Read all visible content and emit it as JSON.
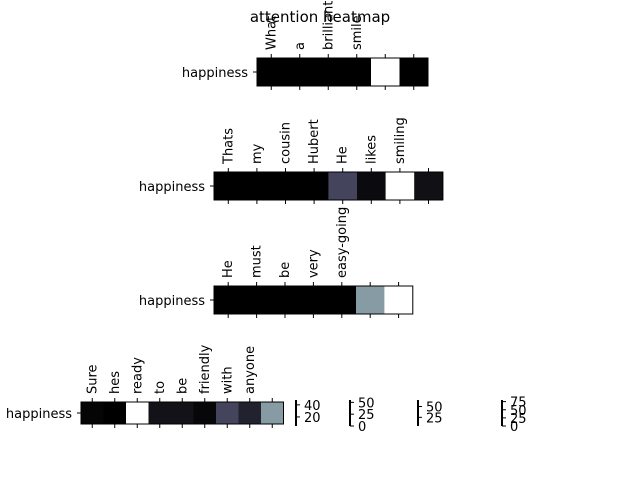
{
  "chart_data": {
    "type": "heatmap",
    "title": "attention heatmap",
    "colormap": "bone",
    "row_label": "happiness",
    "panels": [
      {
        "tokens": [
          "What",
          "a",
          "brilliant",
          "smile",
          "",
          ""
        ],
        "values": [
          0.0,
          0.0,
          0.0,
          0.0,
          1.0,
          0.0
        ]
      },
      {
        "tokens": [
          "Thats",
          "my",
          "cousin",
          "Hubert",
          "He",
          "likes",
          "smiling",
          ""
        ],
        "values": [
          0.0,
          0.0,
          0.0,
          0.0,
          0.3,
          0.05,
          1.0,
          0.07
        ]
      },
      {
        "tokens": [
          "He",
          "must",
          "be",
          "very",
          "easy-going",
          "",
          ""
        ],
        "values": [
          0.0,
          0.0,
          0.0,
          0.0,
          0.0,
          0.6,
          1.0
        ]
      },
      {
        "tokens": [
          "Sure",
          "hes",
          "ready",
          "to",
          "be",
          "friendly",
          "with",
          "anyone",
          ""
        ],
        "values": [
          0.02,
          0.0,
          1.0,
          0.08,
          0.08,
          0.03,
          0.3,
          0.15,
          0.6
        ]
      }
    ],
    "colorbars": [
      {
        "ticks": [
          "40",
          "20"
        ],
        "tick_values": [
          40,
          20
        ],
        "range": [
          5,
          48
        ]
      },
      {
        "ticks": [
          "50",
          "25",
          "0"
        ],
        "tick_values": [
          50,
          25,
          0
        ],
        "range": [
          0,
          55
        ]
      },
      {
        "ticks": [
          "50",
          "25"
        ],
        "tick_values": [
          50,
          25
        ],
        "range": [
          5,
          65
        ]
      },
      {
        "ticks": [
          "75",
          "50",
          "25",
          "0"
        ],
        "tick_values": [
          75,
          50,
          25,
          0
        ],
        "range": [
          0,
          80
        ]
      }
    ]
  }
}
